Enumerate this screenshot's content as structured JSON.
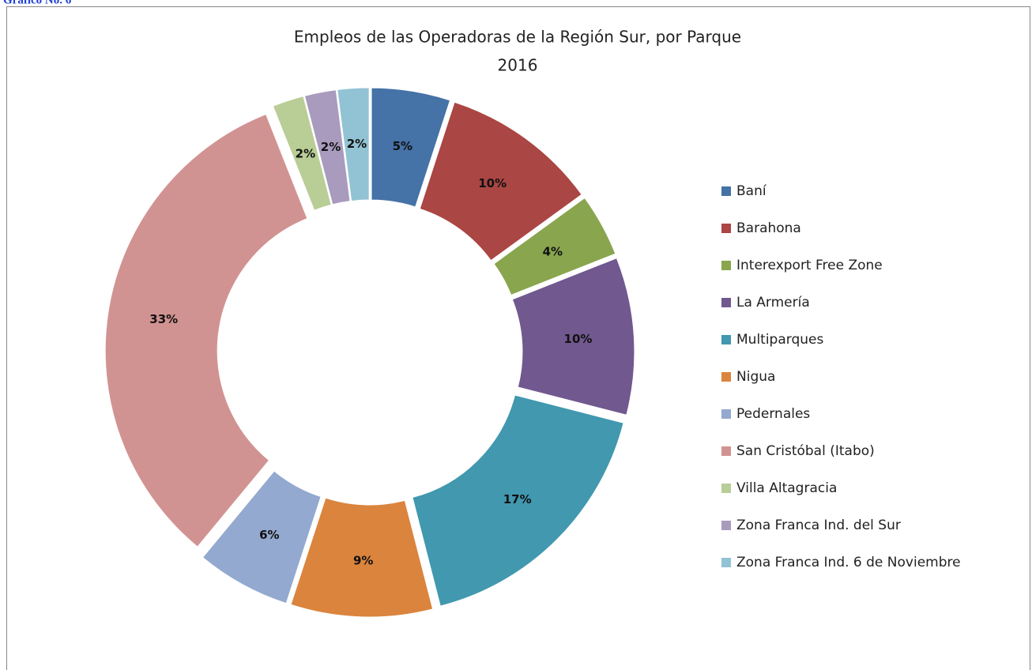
{
  "caption": "Gráfico No. 6",
  "chart_data": {
    "type": "doughnut",
    "title": "Empleos de las Operadoras de la Región Sur, por Parque",
    "subtitle": "2016",
    "categories": [
      "Baní",
      "Barahona",
      "Interexport Free Zone",
      "La Armería",
      "Multiparques",
      "Nigua",
      "Pedernales",
      "San Cristóbal (Itabo)",
      "Villa Altagracia",
      "Zona Franca Ind. del Sur",
      "Zona Franca Ind. 6 de Noviembre"
    ],
    "values": [
      5,
      10,
      4,
      10,
      17,
      9,
      6,
      33,
      2,
      2,
      2
    ],
    "value_labels": [
      "5%",
      "10%",
      "4%",
      "10%",
      "17%",
      "9%",
      "6%",
      "33%",
      "2%",
      "2%",
      "2%"
    ],
    "colors": [
      "#4572a7",
      "#aa4643",
      "#89a54e",
      "#71588f",
      "#4198af",
      "#db843d",
      "#93a9cf",
      "#d19392",
      "#b9cd96",
      "#a99bbd",
      "#92c3d4"
    ],
    "legend": "right"
  }
}
